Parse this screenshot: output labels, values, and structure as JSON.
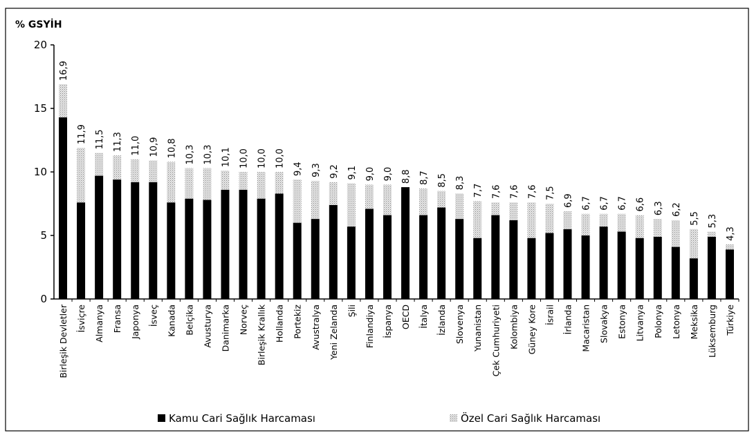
{
  "chart_data": {
    "type": "stacked_bar",
    "y_label": "% GSYİH",
    "categories": [
      "Birleşik Devletler",
      "İsviçre",
      "Almanya",
      "Fransa",
      "Japonya",
      "İsveç",
      "Kanada",
      "Belçika",
      "Avusturya",
      "Danimarka",
      "Norveç",
      "Birleşik Krallık",
      "Hollanda",
      "Portekiz",
      "Avustralya",
      "Yeni Zelanda",
      "Şili",
      "Finlandiya",
      "İspanya",
      "OECD",
      "İtalya",
      "İzlanda",
      "Slovenya",
      "Yunanistan",
      "Çek Cumhuriyeti",
      "Kolombiya",
      "Güney Kore",
      "İsrail",
      "İrlanda",
      "Macaristan",
      "Slovakya",
      "Estonya",
      "Litvanya",
      "Polonya",
      "Letonya",
      "Meksika",
      "Lüksemburg",
      "Türkiye"
    ],
    "series": [
      {
        "name": "Kamu Cari Sağlık Harcaması",
        "color": "#000000",
        "values": [
          14.3,
          7.6,
          9.7,
          9.4,
          9.2,
          9.2,
          7.6,
          7.9,
          7.8,
          8.6,
          8.6,
          7.9,
          8.3,
          6.0,
          6.3,
          7.4,
          5.7,
          7.1,
          6.6,
          8.8,
          6.6,
          7.2,
          6.3,
          4.8,
          6.6,
          6.2,
          4.8,
          5.2,
          5.5,
          5.0,
          5.7,
          5.3,
          4.8,
          4.9,
          4.1,
          3.2,
          4.9,
          3.9
        ]
      },
      {
        "name": "Özel Cari Sağlık Harcaması",
        "color": "#c4c4c4",
        "values": [
          2.6,
          4.3,
          1.8,
          1.9,
          1.8,
          1.7,
          3.2,
          2.4,
          2.5,
          1.5,
          1.4,
          2.1,
          1.7,
          3.4,
          3.0,
          1.8,
          3.4,
          1.9,
          2.4,
          0,
          2.1,
          1.3,
          2.0,
          2.9,
          1.0,
          1.4,
          2.8,
          2.3,
          1.4,
          1.7,
          1.0,
          1.4,
          1.8,
          1.4,
          2.1,
          2.3,
          0.4,
          0.4
        ]
      }
    ],
    "totals": [
      16.9,
      11.9,
      11.5,
      11.3,
      11.0,
      10.9,
      10.8,
      10.3,
      10.3,
      10.1,
      10.0,
      10.0,
      10.0,
      9.4,
      9.3,
      9.2,
      9.1,
      9.0,
      9.0,
      8.8,
      8.7,
      8.5,
      8.3,
      7.7,
      7.6,
      7.6,
      7.6,
      7.5,
      6.9,
      6.7,
      6.7,
      6.7,
      6.6,
      6.3,
      6.2,
      5.5,
      5.3,
      4.3
    ],
    "total_labels": [
      "16,9",
      "11,9",
      "11,5",
      "11,3",
      "11,0",
      "10,9",
      "10,8",
      "10,3",
      "10,3",
      "10,1",
      "10,0",
      "10,0",
      "10,0",
      "9,4",
      "9,3",
      "9,2",
      "9,1",
      "9,0",
      "9,0",
      "8,8",
      "8,7",
      "8,5",
      "8,3",
      "7,7",
      "7,6",
      "7,6",
      "7,6",
      "7,5",
      "6,9",
      "6,7",
      "6,7",
      "6,7",
      "6,6",
      "6,3",
      "6,2",
      "5,5",
      "5,3",
      "4,3"
    ],
    "ylim": [
      0,
      20
    ],
    "yticks": [
      0,
      5,
      10,
      15,
      20
    ]
  }
}
